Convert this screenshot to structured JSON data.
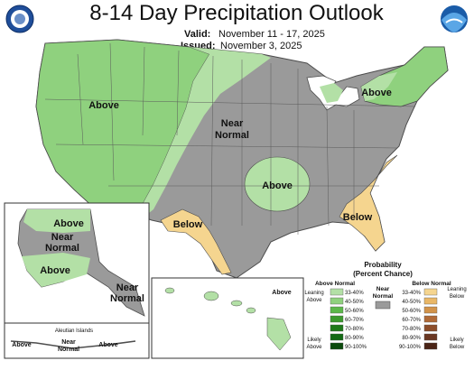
{
  "header": {
    "title": "8-14 Day Precipitation Outlook",
    "valid_label": "Valid:",
    "valid_dates": "November 11 - 17, 2025",
    "issued_label": "Issued:",
    "issued_date": "November 3, 2025",
    "logo_left_text": "DEPARTMENT OF COMMERCE",
    "logo_right_text": "NOAA"
  },
  "map": {
    "regions": {
      "west_above": "Above",
      "central_near": "Near\nNormal",
      "northeast_above": "Above",
      "mid_above": "Above",
      "texas_below": "Below",
      "southeast_below": "Below"
    },
    "alaska": {
      "north_above": "Above",
      "central_near": "Near\nNormal",
      "south_above": "Above",
      "panhandle_near": "Near\nNormal"
    },
    "aleutian": {
      "title": "Aleutian Islands",
      "left_above": "Above",
      "mid_near": "Near\nNormal",
      "right_above": "Above"
    },
    "hawaii": {
      "above": "Above"
    }
  },
  "legend": {
    "title": "Probability\n(Percent Chance)",
    "above_header": "Above Normal",
    "below_header": "Below Normal",
    "near_label": "Near\nNormal",
    "leaning_above": "Leaning\nAbove",
    "likely_above": "Likely\nAbove",
    "leaning_below": "Leaning\nBelow",
    "likely_below": "Likely\nBelow",
    "above_bins": [
      "33-40%",
      "40-50%",
      "50-60%",
      "60-70%",
      "70-80%",
      "80-90%",
      "90-100%"
    ],
    "below_bins": [
      "33-40%",
      "40-50%",
      "50-60%",
      "60-70%",
      "70-80%",
      "80-90%",
      "90-100%"
    ],
    "above_colors": [
      "#b3e0a6",
      "#8fd17e",
      "#5cb84a",
      "#3c9a2e",
      "#1f7a1a",
      "#136a14",
      "#0b4a0c"
    ],
    "below_colors": [
      "#f5d58f",
      "#e9b767",
      "#d2934a",
      "#b06a37",
      "#8c4d2a",
      "#6b3722",
      "#4a2416"
    ],
    "near_color": "#9a9a9a"
  },
  "colors": {
    "above_light": "#b3e0a6",
    "above_mid": "#8fd17e",
    "near_gray": "#9a9a9a",
    "below_light": "#f5d58f",
    "water": "#ffffff",
    "border": "#4d4d4d"
  }
}
